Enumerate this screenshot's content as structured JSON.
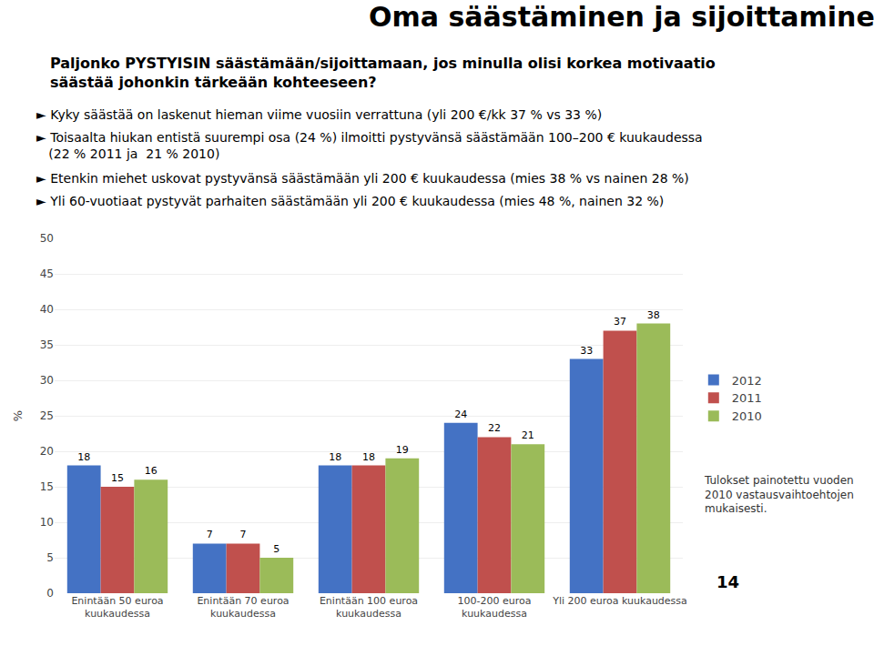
{
  "chart_data": {
    "type": "bar",
    "title": "Oma säästäminen ja sijoittaminen",
    "subtitle": "Paljonko PYSTYISIN säästämään/sijoittamaan, jos minulla olisi korkea motivaatio\nsäästää johonkin tärkeään kohteeseen?",
    "annotations": [
      "► Kyky säästää on laskenut hieman viime vuosiin verrattuna (yli 200 €/kk 37 % vs 33 %)",
      "► Toisaalta hiukan entistä suurempi osa (24 %) ilmoitti pystyvänsä säästämään 100–200 € kuukaudessa\n   (22 % 2011 ja  21 % 2010)",
      "► Etenkin miehet uskovat pystyvänsä säästämään yli 200 € kuukaudessa (mies 38 % vs nainen 28 %)",
      "► Yli 60-vuotiaat pystyvät parhaiten säästämään yli 200 € kuukaudessa (mies 48 %, nainen 32 %)",
      "Tulokset painotettu vuoden\n2010 vastausvaihtoehtojen\nmukaisesti.",
      "14"
    ],
    "categories": [
      "Enintään 50 euroa\nkuukaudessa",
      "Enintään 70 euroa\nkuukaudessa",
      "Enintään 100 euroa\nkuukaudessa",
      "100-200 euroa\nkuukaudessa",
      "Yli 200 euroa kuukaudessa"
    ],
    "series": [
      {
        "name": "2012",
        "color": "#4472C4",
        "values": [
          18,
          7,
          18,
          24,
          33
        ]
      },
      {
        "name": "2011",
        "color": "#C0504D",
        "values": [
          15,
          7,
          18,
          22,
          37
        ]
      },
      {
        "name": "2010",
        "color": "#9BBB59",
        "values": [
          16,
          5,
          19,
          21,
          38
        ]
      }
    ],
    "ylabel": "%",
    "ylim": [
      0,
      50
    ],
    "yticks": [
      0,
      5,
      10,
      15,
      20,
      25,
      30,
      35,
      40,
      45,
      50
    ],
    "grid": true,
    "legend": "right",
    "data_labels": true
  }
}
